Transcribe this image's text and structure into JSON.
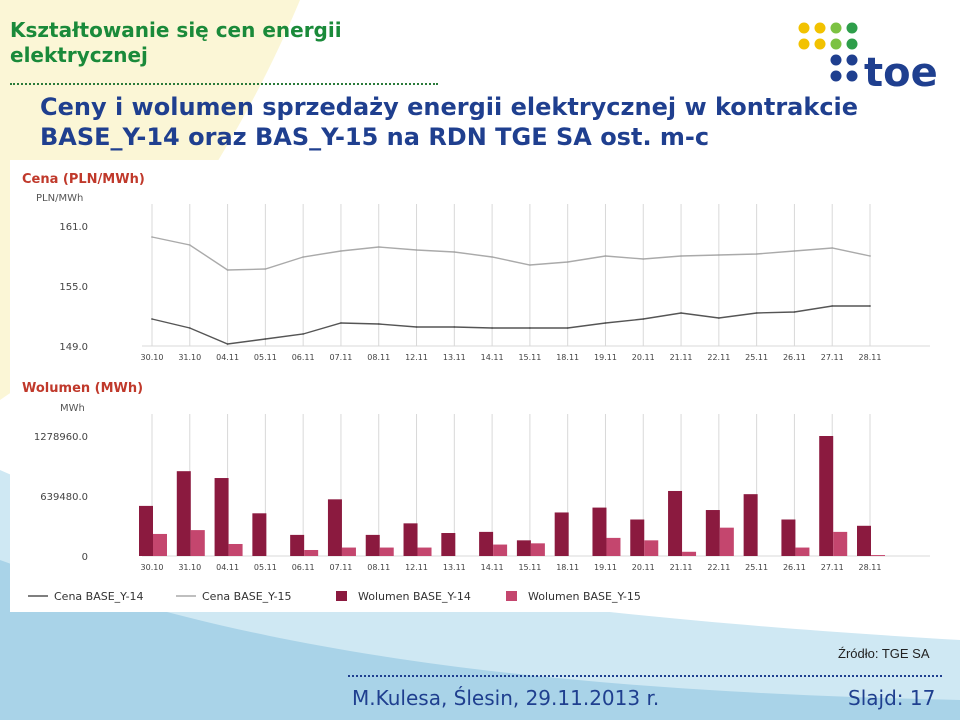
{
  "slide": {
    "title": "Kształtowanie się cen energii elektrycznej",
    "subtitle": "Ceny i wolumen sprzedaży energii elektrycznej w kontrakcie BASE_Y-14 oraz BAS_Y-15 na RDN TGE SA ost. m-c",
    "logo_text": "toe",
    "source": "Źródło: TGE SA",
    "author": "M.Kulesa, Ślesin, 29.11.2013 r.",
    "slide_number": "Slajd: 17"
  },
  "colors": {
    "title_green": "#1a8a3a",
    "subtitle_blue": "#1f3f8f",
    "series_y14_line": "#555555",
    "series_y15_line": "#aaaaaa",
    "vol_y14": "#8b1a3f",
    "vol_y15": "#c4466e",
    "panel_title": "#c0392b"
  },
  "chart_data": [
    {
      "type": "line",
      "title": "Cena (PLN/MWh)",
      "ylabel": "PLN/MWh",
      "ylim": [
        149.0,
        161.0
      ],
      "yticks": [
        "161.0",
        "155.0",
        "149.0"
      ],
      "grid": true,
      "categories": [
        "30.10",
        "31.10",
        "04.11",
        "05.11",
        "06.11",
        "07.11",
        "08.11",
        "12.11",
        "13.11",
        "14.11",
        "15.11",
        "18.11",
        "19.11",
        "20.11",
        "21.11",
        "22.11",
        "25.11",
        "26.11",
        "27.11",
        "28.11"
      ],
      "series": [
        {
          "name": "Cena BASE_Y-14",
          "values": [
            151.7,
            150.8,
            149.2,
            149.7,
            150.2,
            151.3,
            151.2,
            150.9,
            150.9,
            150.8,
            150.8,
            150.8,
            151.3,
            151.7,
            152.3,
            151.8,
            152.3,
            152.4,
            153.0,
            153.0
          ]
        },
        {
          "name": "Cena BASE_Y-15",
          "values": [
            159.9,
            159.1,
            156.6,
            156.7,
            157.9,
            158.5,
            158.9,
            158.6,
            158.4,
            157.9,
            157.1,
            157.4,
            158.0,
            157.7,
            158.0,
            158.1,
            158.2,
            158.5,
            158.8,
            158.0
          ]
        }
      ]
    },
    {
      "type": "bar",
      "title": "Wolumen (MWh)",
      "ylabel": "MWh",
      "ylim": [
        0,
        1278960
      ],
      "yticks": [
        "1278960.0",
        "639480.0",
        "0"
      ],
      "grid": true,
      "categories": [
        "30.10",
        "31.10",
        "04.11",
        "05.11",
        "06.11",
        "07.11",
        "08.11",
        "12.11",
        "13.11",
        "14.11",
        "15.11",
        "18.11",
        "19.11",
        "20.11",
        "21.11",
        "22.11",
        "25.11",
        "26.11",
        "27.11",
        "28.11"
      ],
      "series": [
        {
          "name": "Wolumen BASE_Y-14",
          "values": [
            534000,
            904000,
            831000,
            455000,
            225000,
            604000,
            225000,
            348000,
            245000,
            257000,
            167000,
            464000,
            516000,
            389000,
            693000,
            490000,
            659000,
            389000,
            1278960,
            322000
          ]
        },
        {
          "name": "Wolumen BASE_Y-15",
          "values": [
            235000,
            276000,
            128000,
            0,
            64000,
            90000,
            90000,
            90000,
            0,
            122000,
            135000,
            0,
            193000,
            167000,
            45000,
            302000,
            0,
            90000,
            257000,
            10000
          ]
        }
      ],
      "legend": {
        "placement": "bottom",
        "entries": [
          "Cena BASE_Y-14",
          "Cena BASE_Y-15",
          "Wolumen BASE_Y-14",
          "Wolumen BASE_Y-15"
        ]
      }
    }
  ]
}
